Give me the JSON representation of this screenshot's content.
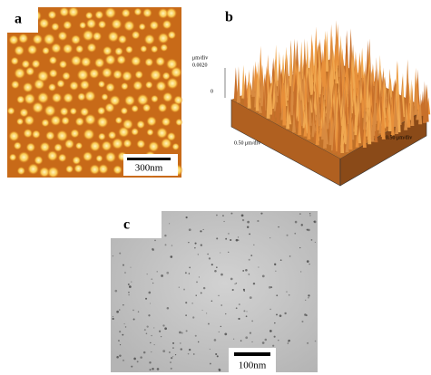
{
  "panels": [
    {
      "label": "a",
      "scale_bar": "300nm"
    },
    {
      "label": "b",
      "z_unit": "μm/div",
      "z_max": "0.0020",
      "z_min": "0",
      "x_axis": "0.50 μm/div",
      "y_axis": "0.50 μm/div"
    },
    {
      "label": "c",
      "scale_bar": "100nm"
    }
  ]
}
